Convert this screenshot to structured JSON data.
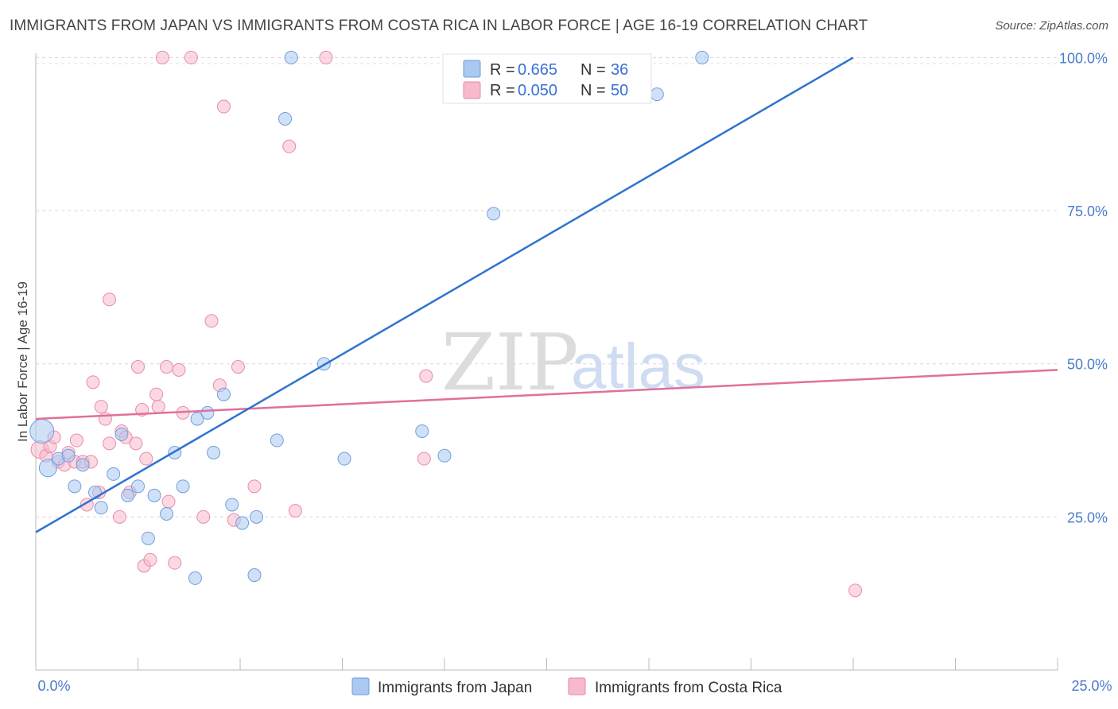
{
  "title": "IMMIGRANTS FROM JAPAN VS IMMIGRANTS FROM COSTA RICA IN LABOR FORCE | AGE 16-19 CORRELATION CHART",
  "source": "Source: ZipAtlas.com",
  "colors": {
    "japan_fill": "#aac8f0",
    "japan_stroke": "#6f9ee0",
    "japan_line": "#2f73d0",
    "costarica_fill": "#f7b9cc",
    "costarica_stroke": "#ea8aaa",
    "costarica_line": "#e0709a",
    "tick_color": "#4a7cc9"
  },
  "legend": {
    "japan": {
      "r_label": "R =",
      "r_value": "0.665",
      "n_label": "N =",
      "n_value": "36"
    },
    "costarica": {
      "r_label": "R =",
      "r_value": "0.050",
      "n_label": "N =",
      "n_value": "50"
    }
  },
  "bottom_legend": {
    "japan": "Immigrants from Japan",
    "costarica": "Immigrants from Costa Rica"
  },
  "watermark": {
    "zip": "ZIP",
    "atlas": "atlas"
  },
  "chart_data": {
    "type": "scatter",
    "title": "IMMIGRANTS FROM JAPAN VS IMMIGRANTS FROM COSTA RICA IN LABOR FORCE | AGE 16-19 CORRELATION CHART",
    "xlabel": "",
    "ylabel": "In Labor Force | Age 16-19",
    "xlim": [
      0,
      25
    ],
    "ylim": [
      0,
      102
    ],
    "x_tick_labels": [
      "0.0%",
      "25.0%"
    ],
    "y_ticks": [
      25,
      50,
      75,
      100
    ],
    "y_tick_labels": [
      "25.0%",
      "50.0%",
      "75.0%",
      "100.0%"
    ],
    "series": [
      {
        "name": "Immigrants from Japan",
        "trend": {
          "x": [
            0,
            20
          ],
          "y": [
            22.5,
            100
          ]
        },
        "points": [
          {
            "x": 0.15,
            "y": 39.0,
            "s": "lg"
          },
          {
            "x": 0.3,
            "y": 33.0,
            "s": "md"
          },
          {
            "x": 0.55,
            "y": 34.5
          },
          {
            "x": 0.8,
            "y": 35.0
          },
          {
            "x": 0.95,
            "y": 30.0
          },
          {
            "x": 1.15,
            "y": 33.5
          },
          {
            "x": 1.45,
            "y": 29.0
          },
          {
            "x": 1.6,
            "y": 26.5
          },
          {
            "x": 1.9,
            "y": 32.0
          },
          {
            "x": 2.1,
            "y": 38.5
          },
          {
            "x": 2.25,
            "y": 28.5
          },
          {
            "x": 2.5,
            "y": 30.0
          },
          {
            "x": 2.75,
            "y": 21.5
          },
          {
            "x": 2.9,
            "y": 28.5
          },
          {
            "x": 3.2,
            "y": 25.5
          },
          {
            "x": 3.4,
            "y": 35.5
          },
          {
            "x": 3.6,
            "y": 30.0
          },
          {
            "x": 3.9,
            "y": 15.0
          },
          {
            "x": 3.95,
            "y": 41.0
          },
          {
            "x": 4.2,
            "y": 42.0
          },
          {
            "x": 4.35,
            "y": 35.5
          },
          {
            "x": 4.6,
            "y": 45.0
          },
          {
            "x": 4.8,
            "y": 27.0
          },
          {
            "x": 5.05,
            "y": 24.0
          },
          {
            "x": 5.35,
            "y": 15.5
          },
          {
            "x": 5.4,
            "y": 25.0
          },
          {
            "x": 5.9,
            "y": 37.5
          },
          {
            "x": 6.1,
            "y": 90.0
          },
          {
            "x": 6.25,
            "y": 100.0
          },
          {
            "x": 7.05,
            "y": 50.0
          },
          {
            "x": 7.55,
            "y": 34.5
          },
          {
            "x": 9.45,
            "y": 39.0
          },
          {
            "x": 10.0,
            "y": 35.0
          },
          {
            "x": 11.2,
            "y": 74.5
          },
          {
            "x": 15.2,
            "y": 94.0
          },
          {
            "x": 16.3,
            "y": 100.0
          }
        ]
      },
      {
        "name": "Immigrants from Costa Rica",
        "trend": {
          "x": [
            0,
            25
          ],
          "y": [
            41.0,
            49.0
          ]
        },
        "points": [
          {
            "x": 0.1,
            "y": 36.0,
            "s": "md"
          },
          {
            "x": 0.25,
            "y": 35.0
          },
          {
            "x": 0.35,
            "y": 36.5
          },
          {
            "x": 0.45,
            "y": 38.0
          },
          {
            "x": 0.55,
            "y": 34.0
          },
          {
            "x": 0.7,
            "y": 33.5
          },
          {
            "x": 0.8,
            "y": 35.5
          },
          {
            "x": 0.95,
            "y": 34.0
          },
          {
            "x": 1.0,
            "y": 37.5
          },
          {
            "x": 1.15,
            "y": 34.0
          },
          {
            "x": 1.25,
            "y": 27.0
          },
          {
            "x": 1.35,
            "y": 34.0
          },
          {
            "x": 1.4,
            "y": 47.0
          },
          {
            "x": 1.55,
            "y": 29.0
          },
          {
            "x": 1.6,
            "y": 43.0
          },
          {
            "x": 1.7,
            "y": 41.0
          },
          {
            "x": 1.8,
            "y": 37.0
          },
          {
            "x": 1.8,
            "y": 60.5
          },
          {
            "x": 2.05,
            "y": 25.0
          },
          {
            "x": 2.1,
            "y": 39.0
          },
          {
            "x": 2.2,
            "y": 38.0
          },
          {
            "x": 2.3,
            "y": 29.0
          },
          {
            "x": 2.45,
            "y": 37.0
          },
          {
            "x": 2.5,
            "y": 49.5
          },
          {
            "x": 2.6,
            "y": 42.5
          },
          {
            "x": 2.65,
            "y": 17.0
          },
          {
            "x": 2.7,
            "y": 34.5
          },
          {
            "x": 2.8,
            "y": 18.0
          },
          {
            "x": 2.95,
            "y": 45.0
          },
          {
            "x": 3.0,
            "y": 43.0
          },
          {
            "x": 3.1,
            "y": 100.0
          },
          {
            "x": 3.2,
            "y": 49.5
          },
          {
            "x": 3.25,
            "y": 27.5
          },
          {
            "x": 3.4,
            "y": 17.5
          },
          {
            "x": 3.5,
            "y": 49.0
          },
          {
            "x": 3.6,
            "y": 42.0
          },
          {
            "x": 3.8,
            "y": 100.0
          },
          {
            "x": 4.1,
            "y": 25.0
          },
          {
            "x": 4.3,
            "y": 57.0
          },
          {
            "x": 4.5,
            "y": 46.5
          },
          {
            "x": 4.6,
            "y": 92.0
          },
          {
            "x": 4.85,
            "y": 24.5
          },
          {
            "x": 4.95,
            "y": 49.5
          },
          {
            "x": 5.35,
            "y": 30.0
          },
          {
            "x": 6.2,
            "y": 85.5
          },
          {
            "x": 6.35,
            "y": 26.0
          },
          {
            "x": 7.1,
            "y": 100.0
          },
          {
            "x": 9.5,
            "y": 34.5
          },
          {
            "x": 9.55,
            "y": 48.0
          },
          {
            "x": 20.05,
            "y": 13.0
          }
        ]
      }
    ]
  }
}
